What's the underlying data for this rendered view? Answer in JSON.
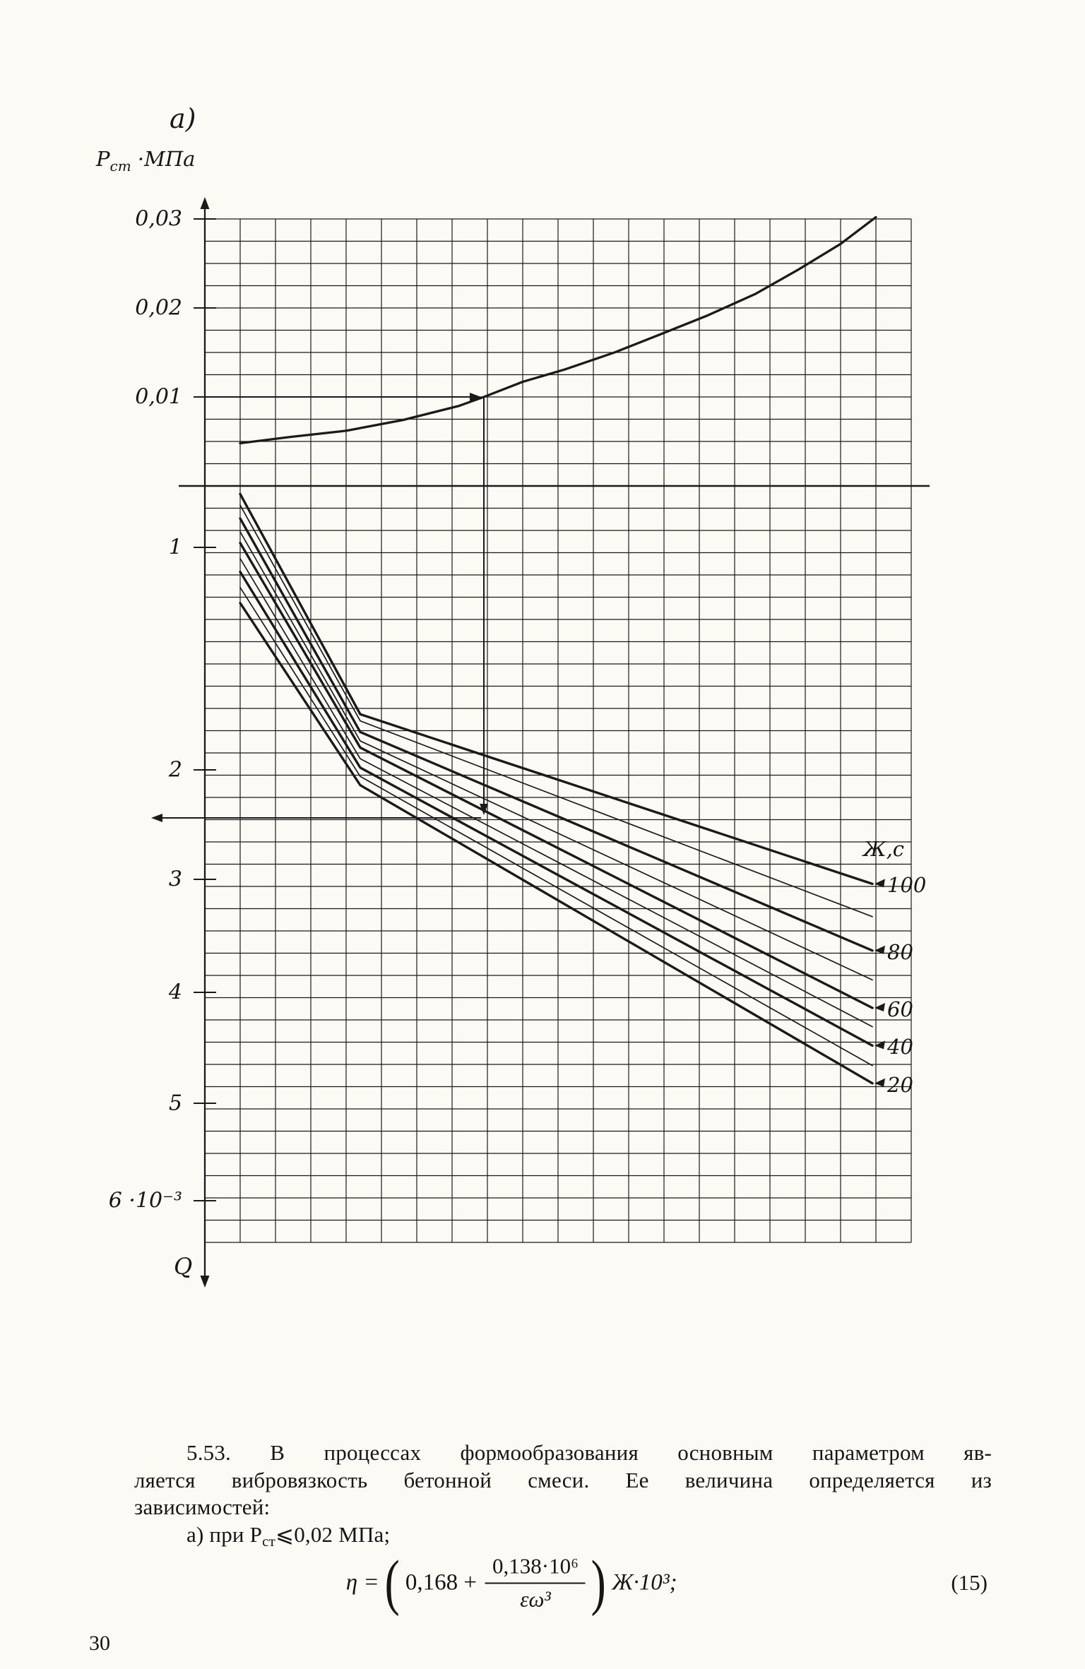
{
  "page": {
    "number": "30"
  },
  "figure": {
    "label": "а)"
  },
  "chart": {
    "axis_title": {
      "main": "Р",
      "sub": "ст",
      "rest": " ·МПа"
    },
    "origin_label": "Q"
  },
  "chart_data": {
    "type": "line",
    "title": "а)",
    "x_axis": {
      "label": "",
      "range": [
        0,
        1
      ],
      "grid": true
    },
    "y_axis_upper": {
      "unit": "МПа",
      "ticks": [
        0.03,
        0.02,
        0.01
      ],
      "tick_labels": [
        "0,03",
        "0,02",
        "0,01"
      ]
    },
    "y_axis_lower": {
      "unit": "·10⁻³",
      "ticks": [
        1,
        2,
        3,
        4,
        5,
        6
      ],
      "tick_labels": [
        "1",
        "2",
        "3",
        "4",
        "5",
        "6 ·10⁻³"
      ],
      "origin_label": "Q"
    },
    "family_label": "Ж,с",
    "upper_curve": {
      "name": "Рст",
      "points": [
        [
          0.05,
          0.0048
        ],
        [
          0.12,
          0.0055
        ],
        [
          0.2,
          0.0062
        ],
        [
          0.28,
          0.0074
        ],
        [
          0.36,
          0.009
        ],
        [
          0.395,
          0.01
        ],
        [
          0.45,
          0.0117
        ],
        [
          0.51,
          0.0131
        ],
        [
          0.58,
          0.015
        ],
        [
          0.65,
          0.0172
        ],
        [
          0.71,
          0.0191
        ],
        [
          0.78,
          0.0216
        ],
        [
          0.84,
          0.0243
        ],
        [
          0.9,
          0.0272
        ],
        [
          0.95,
          0.0302
        ]
      ]
    },
    "fan_series": [
      {
        "label": "100",
        "thick": true,
        "points": [
          [
            0.05,
            0.76
          ],
          [
            0.22,
            1.75
          ],
          [
            0.945,
            3.04
          ]
        ]
      },
      {
        "label": "",
        "thick": false,
        "points": [
          [
            0.05,
            0.81
          ],
          [
            0.22,
            1.78
          ],
          [
            0.945,
            3.33
          ]
        ]
      },
      {
        "label": "80",
        "thick": true,
        "points": [
          [
            0.05,
            0.87
          ],
          [
            0.22,
            1.83
          ],
          [
            0.945,
            3.63
          ]
        ]
      },
      {
        "label": "",
        "thick": false,
        "points": [
          [
            0.05,
            0.93
          ],
          [
            0.22,
            1.87
          ],
          [
            0.945,
            3.89
          ]
        ]
      },
      {
        "label": "60",
        "thick": true,
        "points": [
          [
            0.05,
            0.98
          ],
          [
            0.22,
            1.9
          ],
          [
            0.945,
            4.14
          ]
        ]
      },
      {
        "label": "",
        "thick": false,
        "points": [
          [
            0.05,
            1.05
          ],
          [
            0.22,
            1.95
          ],
          [
            0.945,
            4.31
          ]
        ]
      },
      {
        "label": "40",
        "thick": true,
        "points": [
          [
            0.05,
            1.11
          ],
          [
            0.22,
            1.99
          ],
          [
            0.945,
            4.48
          ]
        ]
      },
      {
        "label": "",
        "thick": false,
        "points": [
          [
            0.05,
            1.18
          ],
          [
            0.22,
            2.06
          ],
          [
            0.945,
            4.66
          ]
        ]
      },
      {
        "label": "20",
        "thick": true,
        "points": [
          [
            0.05,
            1.25
          ],
          [
            0.22,
            2.14
          ],
          [
            0.945,
            4.82
          ]
        ]
      }
    ],
    "guide_value": 0.01
  },
  "paragraph": {
    "lines": [
      "5.53. В процессах формообразования основным параметром яв-",
      "ляется вибровязкость бетонной смеси. Ее величина определяется из",
      "зависимостей:"
    ],
    "condition": {
      "prefix": "а) при Р",
      "sub": "ст",
      "suffix": "⩽0,02 МПа;"
    }
  },
  "formula": {
    "lhs": "η =",
    "open": "(",
    "term1": "0,168 +",
    "numerator": "0,138·10⁶",
    "denominator": "εω³",
    "close": ")",
    "rhs": "Ж·10³;",
    "number": "(15)"
  }
}
